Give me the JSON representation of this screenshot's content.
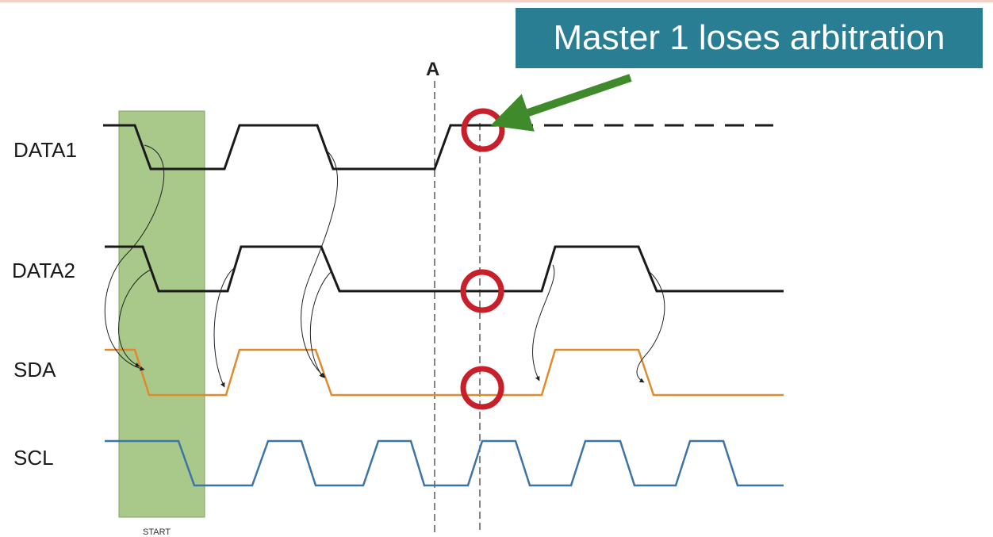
{
  "signals": {
    "data1": "DATA1",
    "data2": "DATA2",
    "sda": "SDA",
    "scl": "SCL"
  },
  "start_label": "START",
  "marker_label": "A",
  "callout": "Master 1 loses arbitration",
  "colors": {
    "data_lines": "#1a1a1a",
    "sda_line": "#e08a2e",
    "scl_line": "#3c74a8",
    "start_region": "#a9c98a",
    "circles": "#c8202a",
    "arrow": "#3f8a2a",
    "callout_bg": "#2a7e93"
  }
}
